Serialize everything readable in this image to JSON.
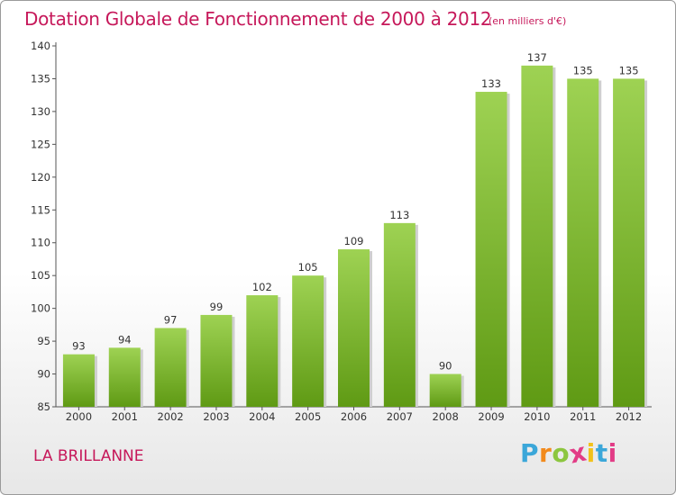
{
  "header": {
    "title": "Dotation Globale de Fonctionnement de 2000 à 2012",
    "subtitle": "(en milliers d'€)"
  },
  "footer": {
    "commune": "LA BRILLANNE",
    "logo": [
      "P",
      "r",
      "o",
      "x",
      "i",
      "t",
      "i"
    ]
  },
  "colors": {
    "accent": "#c6185a",
    "bar_top": "#9ed253",
    "bar_bottom": "#5f9a14",
    "logo": [
      "#3ba7d9",
      "#f28a1c",
      "#8cc63f",
      "#e23c86",
      "#f2c21b",
      "#3ba7d9",
      "#e23c86"
    ]
  },
  "chart_data": {
    "type": "bar",
    "title": "Dotation Globale de Fonctionnement de 2000 à 2012",
    "subtitle": "(en milliers d'€)",
    "categories": [
      "2000",
      "2001",
      "2002",
      "2003",
      "2004",
      "2005",
      "2006",
      "2007",
      "2008",
      "2009",
      "2010",
      "2011",
      "2012"
    ],
    "values": [
      93,
      94,
      97,
      99,
      102,
      105,
      109,
      113,
      90,
      133,
      137,
      135,
      135
    ],
    "ylim": [
      85,
      140
    ],
    "yticks": [
      85,
      90,
      95,
      100,
      105,
      110,
      115,
      120,
      125,
      130,
      135,
      140
    ],
    "grid": false,
    "legend": "none"
  }
}
